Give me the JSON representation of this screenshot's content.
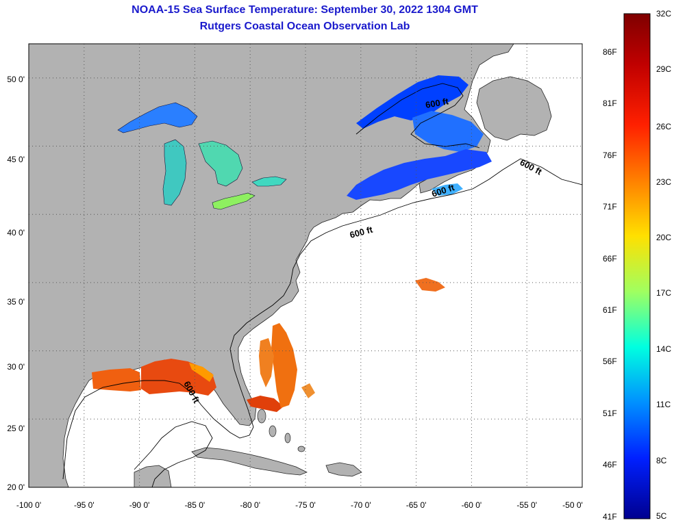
{
  "header": {
    "title": "NOAA-15 Sea Surface Temperature:  September 30, 2022 1304 GMT",
    "subtitle": "Rutgers Coastal Ocean Observation Lab"
  },
  "map": {
    "lon_range": [
      -100,
      -50
    ],
    "lat_range": [
      20,
      52.5
    ],
    "lon_ticks": [
      "-100 0'",
      "-95 0'",
      "-90 0'",
      "-85 0'",
      "-80 0'",
      "-75 0'",
      "-70 0'",
      "-65 0'",
      "-60 0'",
      "-55 0'",
      "-50 0'"
    ],
    "lat_ticks": [
      "50 0'",
      "45 0'",
      "40 0'",
      "35 0'",
      "30 0'",
      "25 0'",
      "20 0'"
    ],
    "contour_labels": [
      "600 ft",
      "600 ft",
      "600 ft",
      "600 ft",
      "600 ft"
    ],
    "colors": {
      "land": "#b2b2b2",
      "ocean": "#ffffff",
      "grid": "#555555"
    }
  },
  "colorbar": {
    "fahrenheit": [
      "86F",
      "81F",
      "76F",
      "71F",
      "66F",
      "61F",
      "56F",
      "51F",
      "46F",
      "41F"
    ],
    "celsius": [
      "32C",
      "29C",
      "26C",
      "23C",
      "20C",
      "17C",
      "14C",
      "11C",
      "8C",
      "5C"
    ],
    "colors": [
      "#7f0000",
      "#ff0000",
      "#ff8000",
      "#ffff00",
      "#80ff80",
      "#00ffff",
      "#0080ff",
      "#0000ff",
      "#00008f"
    ]
  }
}
